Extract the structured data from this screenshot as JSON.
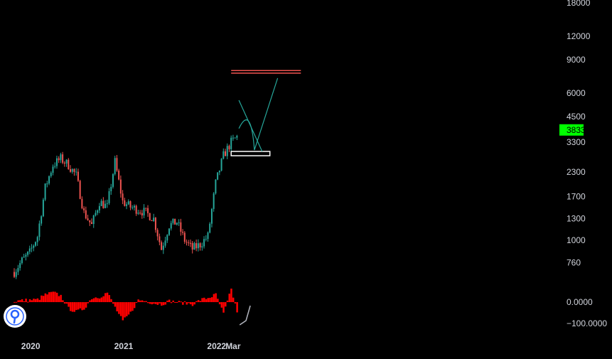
{
  "chart_data": [
    {
      "type": "candlestick",
      "title": "",
      "scale": "log",
      "grid": false,
      "colors": {
        "up": "#26a69a",
        "down": "#ef5350",
        "background": "#000000",
        "text": "#d1d4dc"
      },
      "x_labels": [
        "2020",
        "2021",
        "2022",
        "Mar"
      ],
      "y_ticks": [
        760,
        1000,
        1300,
        1700,
        2300,
        3300,
        4500,
        6000,
        9000,
        12000,
        18000
      ],
      "y_tick_labels": [
        "760",
        "1000",
        "1300",
        "1700",
        "2300",
        "3300",
        "4500",
        "6000",
        "9000",
        "12000",
        "18000"
      ],
      "ylim": [
        560,
        18500
      ],
      "last_price": {
        "value": 3833,
        "label": "3833",
        "color": "#00ff00"
      },
      "close_series": {
        "x": [
          "2019-11",
          "2019-12",
          "2020-01",
          "2020-02",
          "2020-03",
          "2020-04",
          "2020-05",
          "2020-06",
          "2020-07",
          "2020-08",
          "2020-09",
          "2020-10",
          "2020-11",
          "2020-12",
          "2021-01",
          "2021-02",
          "2021-03",
          "2021-04",
          "2021-05",
          "2021-06",
          "2021-07",
          "2021-08",
          "2021-09",
          "2021-10",
          "2021-11",
          "2021-12",
          "2022-01",
          "2022-02",
          "2022-03",
          "2022-04"
        ],
        "values": [
          680,
          780,
          860,
          1050,
          1900,
          2500,
          2700,
          2500,
          2200,
          1400,
          1200,
          1600,
          1500,
          2600,
          1600,
          1500,
          1450,
          1400,
          1300,
          900,
          1200,
          1250,
          1000,
          900,
          950,
          1050,
          2000,
          2800,
          3300,
          3600
        ]
      },
      "annotations": [
        {
          "type": "horizontal_band",
          "label": "resistance",
          "price_low": 7650,
          "price_high": 7900,
          "color": "#ef5350",
          "x_start": "2022-03",
          "x_end": "2022-12"
        },
        {
          "type": "support_box",
          "label": "support",
          "price_low": 2800,
          "price_high": 2950,
          "color": "#ffffff",
          "x_start": "2022-03",
          "x_end": "2022-08"
        },
        {
          "type": "trendline",
          "label": "descending",
          "color": "#26a69a",
          "from": {
            "x": "2022-04",
            "price": 5500
          },
          "to": {
            "x": "2022-07",
            "price": 2950
          }
        },
        {
          "type": "projection",
          "label": "projected-path",
          "color": "#26a69a",
          "points": [
            {
              "x": "2022-04",
              "price": 3900
            },
            {
              "x": "2022-06",
              "price": 3000
            },
            {
              "x": "2022-09",
              "price": 7200
            }
          ]
        }
      ]
    },
    {
      "type": "histogram",
      "title": "",
      "y_ticks": [
        0,
        -100
      ],
      "y_tick_labels": [
        "0.0000",
        "−100.0000"
      ],
      "colors": {
        "positive": "#ff0000",
        "negative": "#ff0000",
        "divergence": "#b2b5be"
      },
      "x": [
        "2019-11",
        "2019-12",
        "2020-01",
        "2020-02",
        "2020-03",
        "2020-04",
        "2020-05",
        "2020-06",
        "2020-07",
        "2020-08",
        "2020-09",
        "2020-10",
        "2020-11",
        "2020-12",
        "2021-01",
        "2021-02",
        "2021-03",
        "2021-04",
        "2021-05",
        "2021-06",
        "2021-07",
        "2021-08",
        "2021-09",
        "2021-10",
        "2021-11",
        "2021-12",
        "2022-01",
        "2022-02",
        "2022-03",
        "2022-04"
      ],
      "values": [
        5,
        8,
        10,
        12,
        35,
        45,
        30,
        -30,
        -45,
        -30,
        20,
        25,
        45,
        -25,
        -90,
        -50,
        10,
        5,
        -5,
        -10,
        5,
        0,
        -5,
        -10,
        10,
        20,
        35,
        -55,
        60,
        -80
      ]
    }
  ]
}
